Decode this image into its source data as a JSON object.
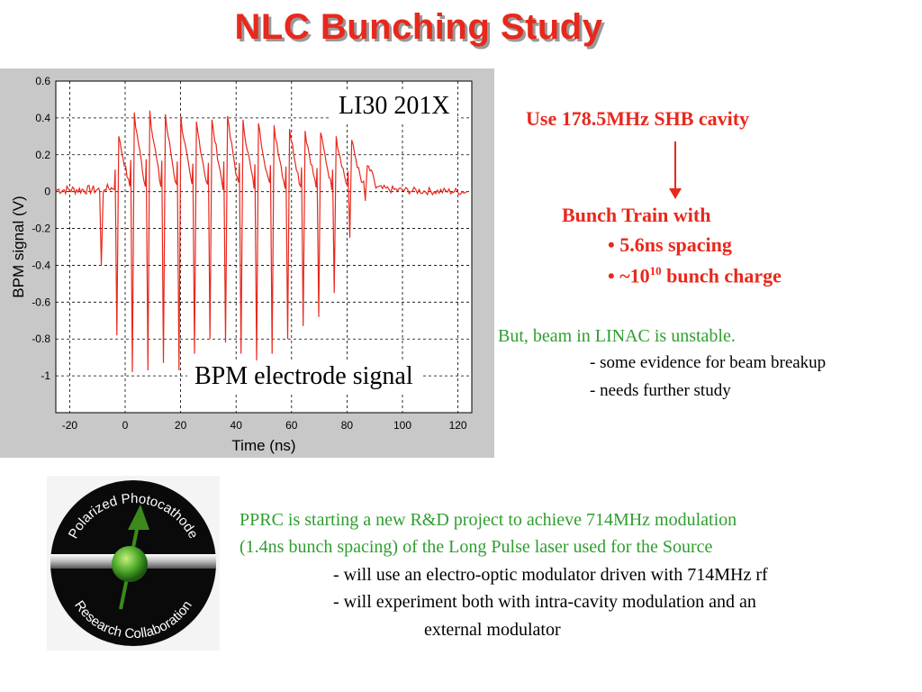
{
  "title": "NLC  Bunching Study",
  "chart_data": {
    "type": "line",
    "xlabel": "Time (ns)",
    "ylabel": "BPM signal (V)",
    "xlim": [
      -25,
      125
    ],
    "ylim": [
      -1.2,
      0.6
    ],
    "xticks": [
      -20,
      0,
      20,
      40,
      60,
      80,
      100,
      120
    ],
    "yticks": [
      0.6,
      0.4,
      0.2,
      0,
      -0.2,
      -0.4,
      -0.6,
      -0.8,
      -1
    ],
    "grid": true,
    "series_color": "#e8281c",
    "pulses": [
      {
        "t": -8.4,
        "peak": 0.0,
        "trough": -0.4
      },
      {
        "t": -2.8,
        "peak": 0.3,
        "trough": -0.78
      },
      {
        "t": 2.8,
        "peak": 0.43,
        "trough": -0.98
      },
      {
        "t": 8.4,
        "peak": 0.44,
        "trough": -0.97
      },
      {
        "t": 14.0,
        "peak": 0.42,
        "trough": -0.93
      },
      {
        "t": 19.6,
        "peak": 0.41,
        "trough": -0.97
      },
      {
        "t": 25.2,
        "peak": 0.38,
        "trough": -0.88
      },
      {
        "t": 30.8,
        "peak": 0.39,
        "trough": -0.8
      },
      {
        "t": 36.4,
        "peak": 0.41,
        "trough": -0.82
      },
      {
        "t": 42.0,
        "peak": 0.39,
        "trough": -0.88
      },
      {
        "t": 47.6,
        "peak": 0.37,
        "trough": -0.92
      },
      {
        "t": 53.2,
        "peak": 0.36,
        "trough": -0.88
      },
      {
        "t": 58.8,
        "peak": 0.34,
        "trough": -0.8
      },
      {
        "t": 64.4,
        "peak": 0.33,
        "trough": -0.73
      },
      {
        "t": 70.0,
        "peak": 0.32,
        "trough": -0.68
      },
      {
        "t": 75.6,
        "peak": 0.3,
        "trough": -0.55
      },
      {
        "t": 81.2,
        "peak": 0.28,
        "trough": -0.25
      },
      {
        "t": 86.8,
        "peak": 0.14,
        "trough": -0.05
      }
    ]
  },
  "plot_label_top": "LI30 201X",
  "plot_label_bottom": "BPM electrode signal",
  "shb_text": "Use 178.5MHz SHB cavity",
  "bunch_train": {
    "heading": "Bunch Train with",
    "bullet1": "• 5.6ns spacing",
    "bullet2_pre": "• ~10",
    "bullet2_sup": "10",
    "bullet2_post": " bunch charge"
  },
  "linac": {
    "line1": "But, beam in LINAC is unstable.",
    "line2": "- some evidence for beam breakup",
    "line3": "- needs further study"
  },
  "logo": {
    "top_text": "Polarized Photocathode",
    "bottom_text": "Research Collaboration"
  },
  "pprc": {
    "line1": "PPRC is starting a new R&D project to achieve 714MHz modulation",
    "line2": "(1.4ns bunch spacing) of the Long Pulse laser used for the Source",
    "line3": "- will use an electro-optic modulator driven with 714MHz rf",
    "line4": "- will experiment both with intra-cavity modulation and an",
    "line5": "external modulator"
  }
}
